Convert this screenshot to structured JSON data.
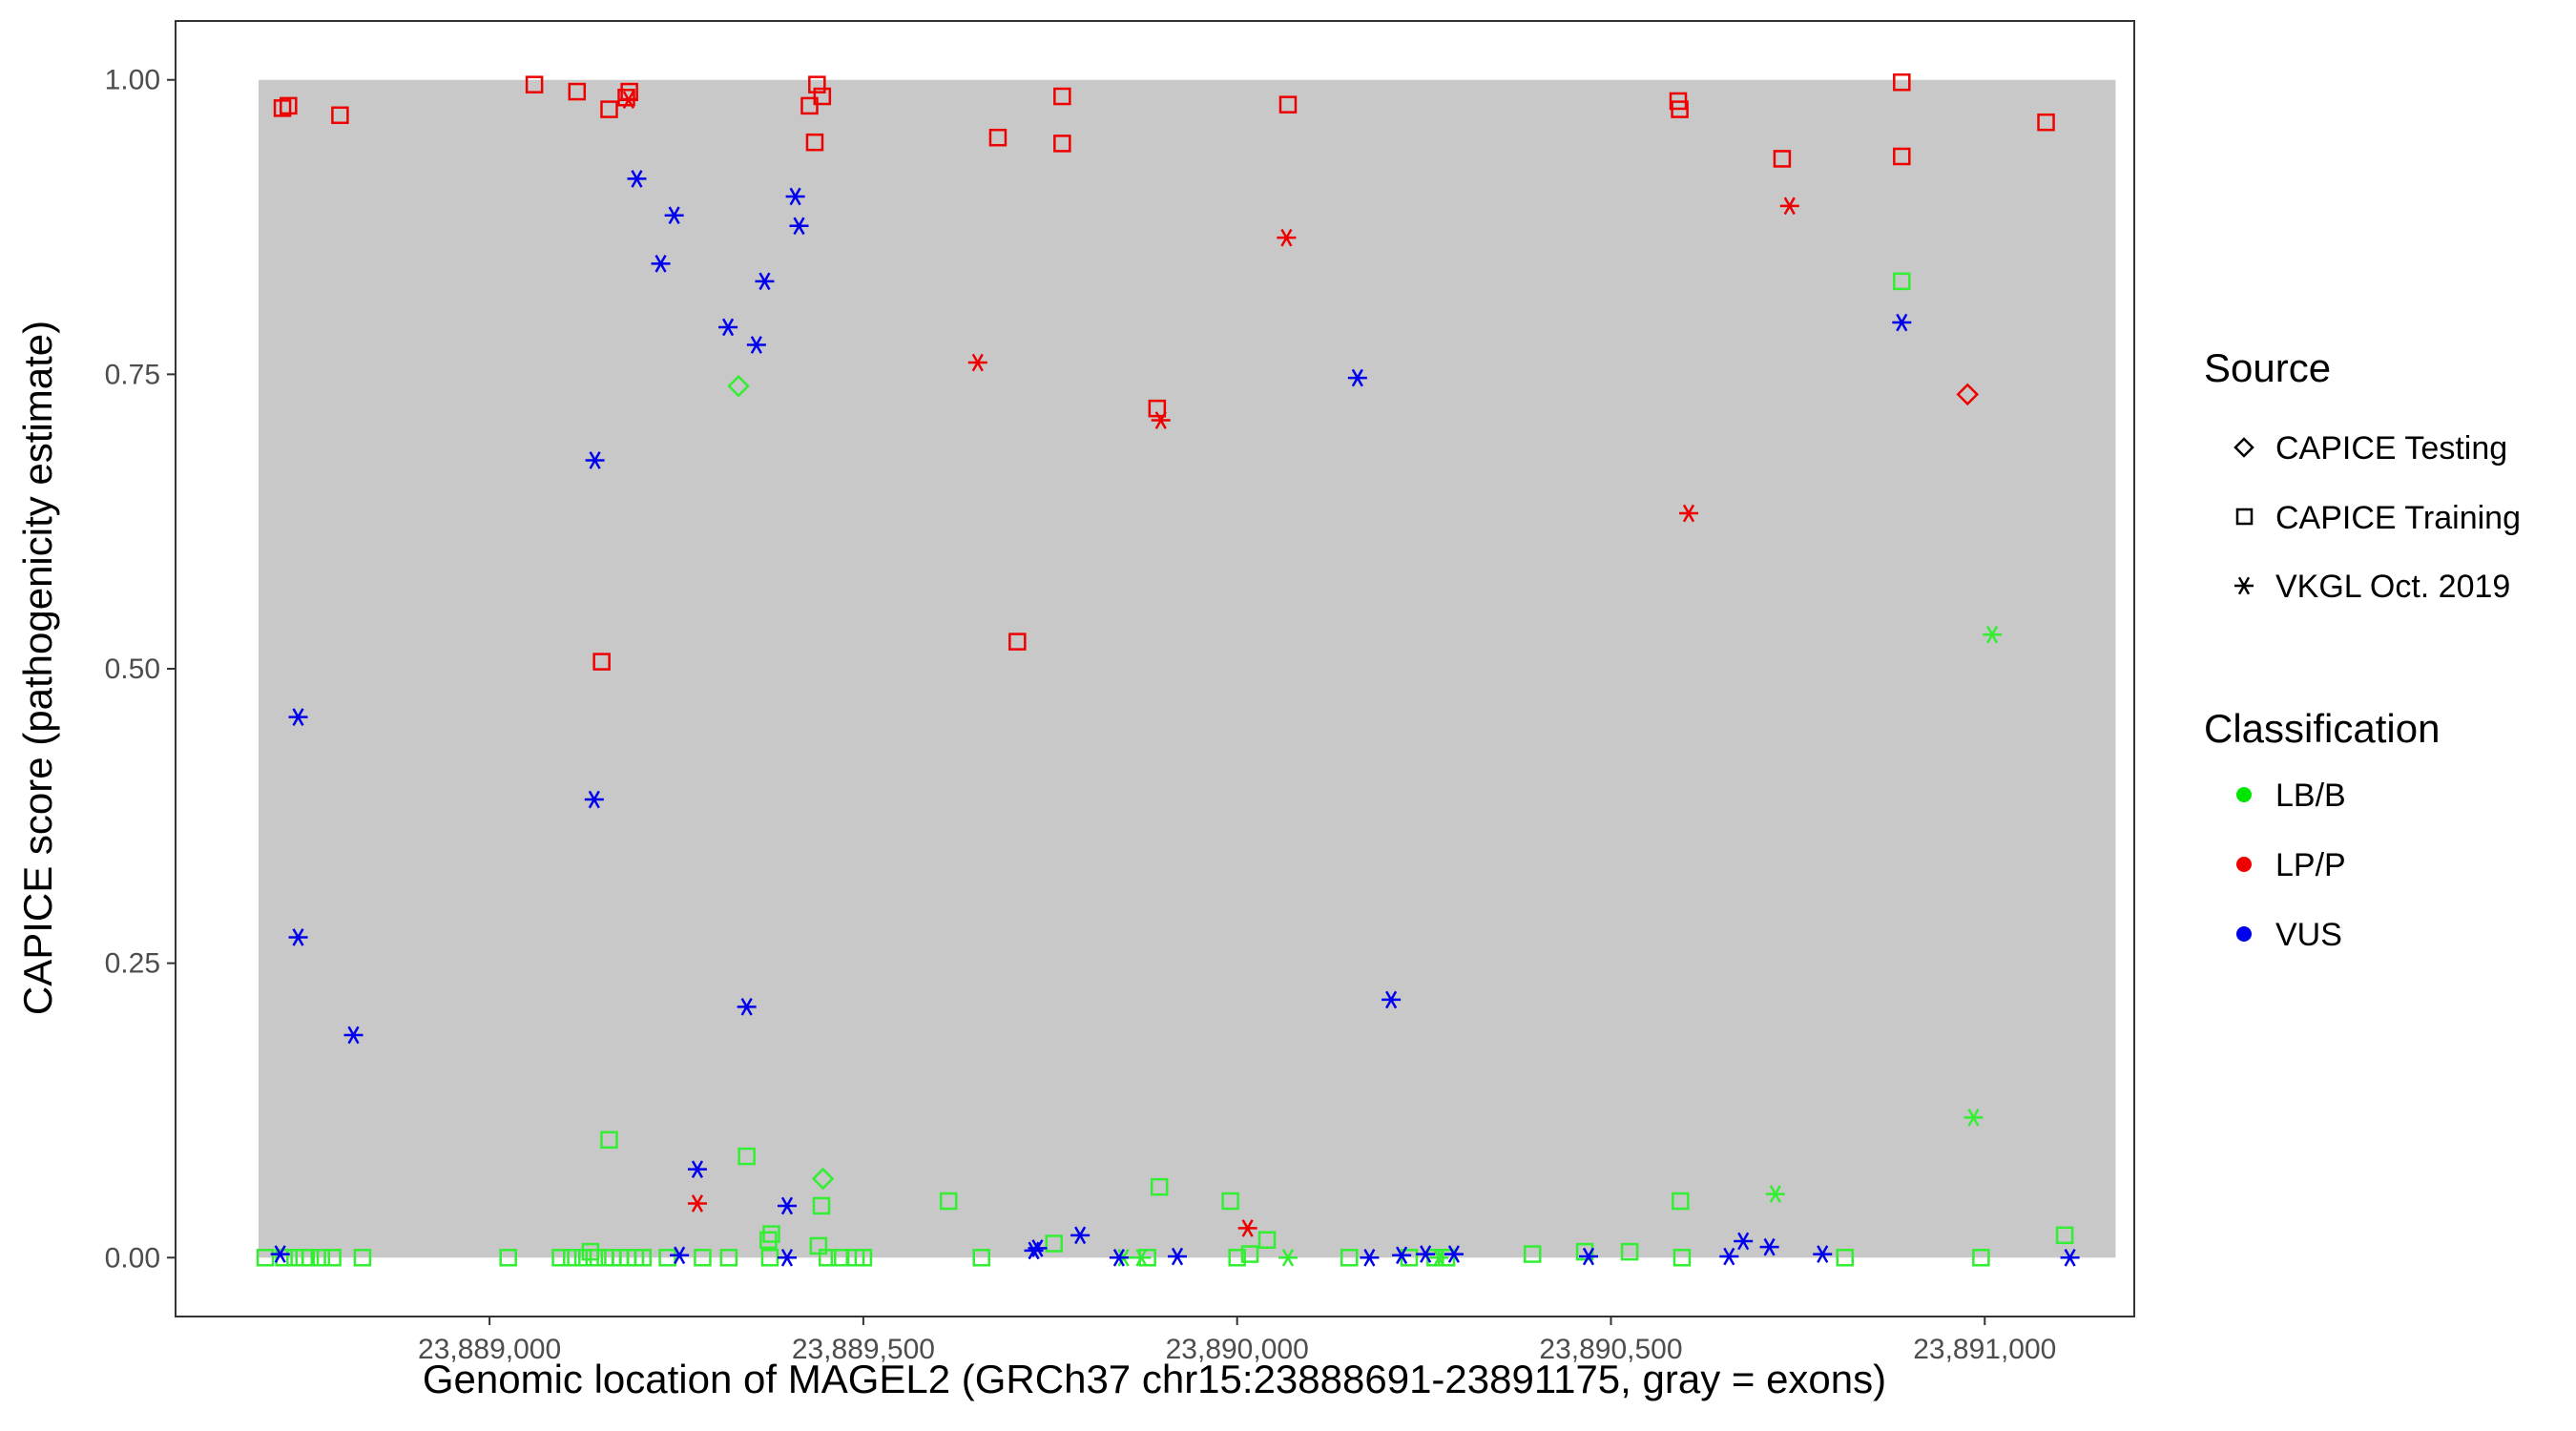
{
  "chart_data": {
    "type": "scatter",
    "xlabel": "Genomic location of MAGEL2 (GRCh37 chr15:23888691-23891175, gray = exons)",
    "ylabel": "CAPICE score (pathogenicity estimate)",
    "xlim": [
      23888580,
      23891200
    ],
    "ylim": [
      -0.05,
      1.05
    ],
    "x_ticks": [
      23889000,
      23889500,
      23890000,
      23890500,
      23891000
    ],
    "x_tick_labels": [
      "23,889,000",
      "23,889,500",
      "23,890,000",
      "23,890,500",
      "23,891,000"
    ],
    "y_ticks": [
      0,
      0.25,
      0.5,
      0.75,
      1.0
    ],
    "y_tick_labels": [
      "0.00",
      "0.25",
      "0.50",
      "0.75",
      "1.00"
    ],
    "exon_band": {
      "x": [
        23888691,
        23891175
      ],
      "y": [
        0,
        1
      ]
    },
    "grid": false,
    "legend_position": "right",
    "legend": {
      "source_title": "Source",
      "source_items": [
        {
          "label": "CAPICE Testing",
          "shape": "diamond"
        },
        {
          "label": "CAPICE Training",
          "shape": "square"
        },
        {
          "label": "VKGL Oct. 2019",
          "shape": "asterisk"
        }
      ],
      "class_title": "Classification",
      "class_items": [
        {
          "label": "LB/B",
          "color": "#00e600"
        },
        {
          "label": "LP/P",
          "color": "#ee0000"
        },
        {
          "label": "VUS",
          "color": "#0000ee"
        }
      ]
    },
    "colors": {
      "LB/B": "#33ee33",
      "LP/P": "#ee0000",
      "VUS": "#0000ee",
      "exon_fill": "#c8c8c8"
    },
    "series": [
      {
        "name": "CAPICE Training",
        "shape": "square",
        "class": "LP/P",
        "points": [
          [
            23888723,
            0.976
          ],
          [
            23888731,
            0.978
          ],
          [
            23888800,
            0.97
          ],
          [
            23889060,
            0.996
          ],
          [
            23889117,
            0.99
          ],
          [
            23889160,
            0.975
          ],
          [
            23889183,
            0.985
          ],
          [
            23889187,
            0.99
          ],
          [
            23889150,
            0.506
          ],
          [
            23889428,
            0.978
          ],
          [
            23889438,
            0.996
          ],
          [
            23889445,
            0.986
          ],
          [
            23889435,
            0.947
          ],
          [
            23889680,
            0.951
          ],
          [
            23889766,
            0.986
          ],
          [
            23889766,
            0.946
          ],
          [
            23889706,
            0.523
          ],
          [
            23889893,
            0.721
          ],
          [
            23890068,
            0.979
          ],
          [
            23890590,
            0.982
          ],
          [
            23890592,
            0.975
          ],
          [
            23890729,
            0.933
          ],
          [
            23890889,
            0.998
          ],
          [
            23890889,
            0.935
          ],
          [
            23891082,
            0.964
          ]
        ]
      },
      {
        "name": "CAPICE Training",
        "shape": "square",
        "class": "LB/B",
        "points": [
          [
            23889160,
            0.1
          ],
          [
            23889344,
            0.086
          ],
          [
            23889377,
            0.02
          ],
          [
            23889373,
            0.015
          ],
          [
            23889444,
            0.044
          ],
          [
            23889614,
            0.048
          ],
          [
            23889896,
            0.06
          ],
          [
            23889991,
            0.048
          ],
          [
            23890593,
            0.048
          ],
          [
            23890889,
            0.829
          ],
          [
            23891107,
            0.019
          ],
          [
            23888700,
            0.0
          ],
          [
            23888725,
            0.0
          ],
          [
            23888740,
            0.0
          ],
          [
            23888752,
            0.0
          ],
          [
            23888760,
            0.0
          ],
          [
            23888775,
            0.0
          ],
          [
            23888790,
            0.0
          ],
          [
            23888830,
            0.0
          ],
          [
            23889025,
            0.0
          ],
          [
            23889095,
            0.0
          ],
          [
            23889110,
            0.0
          ],
          [
            23889125,
            0.0
          ],
          [
            23889135,
            0.005
          ],
          [
            23889140,
            0.0
          ],
          [
            23889155,
            0.0
          ],
          [
            23889165,
            0.0
          ],
          [
            23889175,
            0.0
          ],
          [
            23889185,
            0.0
          ],
          [
            23889195,
            0.0
          ],
          [
            23889205,
            0.0
          ],
          [
            23889238,
            0.0
          ],
          [
            23889285,
            0.0
          ],
          [
            23889320,
            0.0
          ],
          [
            23889375,
            0.0
          ],
          [
            23889440,
            0.01
          ],
          [
            23889452,
            0.0
          ],
          [
            23889468,
            0.0
          ],
          [
            23889490,
            0.0
          ],
          [
            23889500,
            0.0
          ],
          [
            23889658,
            0.0
          ],
          [
            23889755,
            0.012
          ],
          [
            23889880,
            0.0
          ],
          [
            23890000,
            0.0
          ],
          [
            23890017,
            0.003
          ],
          [
            23890040,
            0.015
          ],
          [
            23890150,
            0.0
          ],
          [
            23890230,
            0.0
          ],
          [
            23890265,
            0.0
          ],
          [
            23890280,
            0.0
          ],
          [
            23890395,
            0.003
          ],
          [
            23890465,
            0.005
          ],
          [
            23890525,
            0.005
          ],
          [
            23890595,
            0.0
          ],
          [
            23890813,
            0.0
          ],
          [
            23890995,
            0.0
          ]
        ]
      },
      {
        "name": "CAPICE Testing",
        "shape": "diamond",
        "class": "LB/B",
        "points": [
          [
            23889333,
            0.74
          ],
          [
            23889446,
            0.067
          ]
        ]
      },
      {
        "name": "CAPICE Testing",
        "shape": "diamond",
        "class": "LP/P",
        "points": [
          [
            23890977,
            0.733
          ]
        ]
      },
      {
        "name": "VKGL Oct. 2019",
        "shape": "asterisk",
        "class": "LP/P",
        "points": [
          [
            23889186,
            0.983
          ],
          [
            23889653,
            0.76
          ],
          [
            23890066,
            0.866
          ],
          [
            23889898,
            0.711
          ],
          [
            23890604,
            0.632
          ],
          [
            23890739,
            0.893
          ],
          [
            23889278,
            0.046
          ],
          [
            23890014,
            0.025
          ]
        ]
      },
      {
        "name": "VKGL Oct. 2019",
        "shape": "asterisk",
        "class": "LB/B",
        "points": [
          [
            23891010,
            0.529
          ],
          [
            23890985,
            0.119
          ],
          [
            23890720,
            0.054
          ],
          [
            23890068,
            0.0
          ],
          [
            23889848,
            0.0
          ],
          [
            23889872,
            0.0
          ],
          [
            23890270,
            0.0
          ]
        ]
      },
      {
        "name": "VKGL Oct. 2019",
        "shape": "asterisk",
        "class": "VUS",
        "points": [
          [
            23889197,
            0.916
          ],
          [
            23889247,
            0.885
          ],
          [
            23889229,
            0.844
          ],
          [
            23889409,
            0.901
          ],
          [
            23889414,
            0.876
          ],
          [
            23889368,
            0.829
          ],
          [
            23889319,
            0.79
          ],
          [
            23889357,
            0.775
          ],
          [
            23889141,
            0.677
          ],
          [
            23890161,
            0.747
          ],
          [
            23890889,
            0.794
          ],
          [
            23888744,
            0.459
          ],
          [
            23889140,
            0.389
          ],
          [
            23888744,
            0.272
          ],
          [
            23889344,
            0.213
          ],
          [
            23888818,
            0.189
          ],
          [
            23890206,
            0.219
          ],
          [
            23889278,
            0.075
          ],
          [
            23889398,
            0.044
          ],
          [
            23889790,
            0.019
          ],
          [
            23889728,
            0.006
          ],
          [
            23889733,
            0.008
          ],
          [
            23890677,
            0.014
          ],
          [
            23890712,
            0.009
          ],
          [
            23888720,
            0.003
          ],
          [
            23889254,
            0.002
          ],
          [
            23889398,
            0.0
          ],
          [
            23889842,
            0.0
          ],
          [
            23889920,
            0.001
          ],
          [
            23890177,
            0.0
          ],
          [
            23890220,
            0.002
          ],
          [
            23890252,
            0.003
          ],
          [
            23890290,
            0.003
          ],
          [
            23890470,
            0.001
          ],
          [
            23890658,
            0.001
          ],
          [
            23890783,
            0.003
          ],
          [
            23891114,
            0.0
          ]
        ]
      }
    ]
  }
}
